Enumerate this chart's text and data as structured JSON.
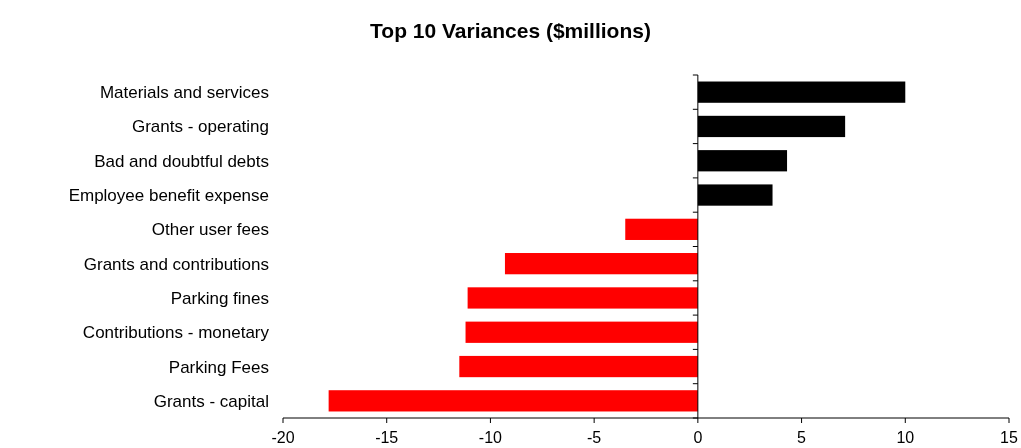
{
  "chart_data": {
    "type": "bar",
    "orientation": "horizontal",
    "title": "Top 10 Variances ($millions)",
    "categories": [
      "Materials and services",
      "Grants - operating",
      "Bad and doubtful debts",
      "Employee benefit expense",
      "Other user fees",
      "Grants and contributions",
      "Parking fines",
      "Contributions - monetary",
      "Parking Fees",
      "Grants - capital"
    ],
    "values": [
      10,
      7.1,
      4.3,
      3.6,
      -3.5,
      -9.3,
      -11.1,
      -11.2,
      -11.5,
      -17.8
    ],
    "colors": [
      "#000000",
      "#000000",
      "#000000",
      "#000000",
      "#ff0000",
      "#ff0000",
      "#ff0000",
      "#ff0000",
      "#ff0000",
      "#ff0000"
    ],
    "xlim": [
      -20,
      15
    ],
    "xticks": [
      -20,
      -15,
      -10,
      -5,
      0,
      5,
      10,
      15
    ]
  }
}
